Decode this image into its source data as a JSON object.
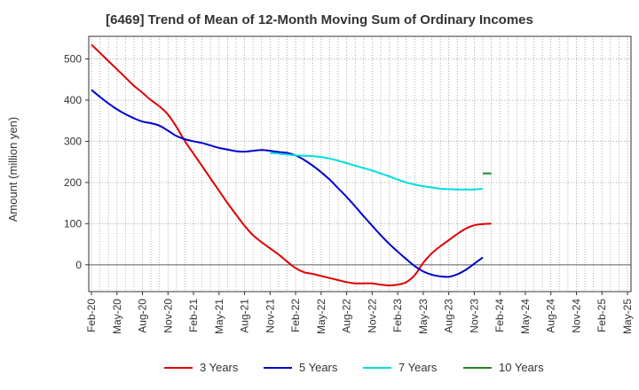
{
  "chart_data": {
    "type": "line",
    "title": "[6469]  Trend of Mean of 12-Month Moving Sum of Ordinary Incomes",
    "xlabel": "",
    "ylabel": "Amount (million yen)",
    "ylim": [
      -65,
      555
    ],
    "yticks": [
      0,
      100,
      200,
      300,
      400,
      500
    ],
    "x_tick_labels": [
      "Feb-20",
      "May-20",
      "Aug-20",
      "Nov-20",
      "Feb-21",
      "May-21",
      "Aug-21",
      "Nov-21",
      "Feb-22",
      "May-22",
      "Aug-22",
      "Nov-22",
      "Feb-23",
      "May-23",
      "Aug-23",
      "Nov-23",
      "Feb-24",
      "May-24",
      "Aug-24",
      "Nov-24",
      "Feb-25",
      "May-25"
    ],
    "grid": true,
    "legend_position": "bottom",
    "series": [
      {
        "name": "3 Years",
        "color": "#dd0000",
        "start_index": 0,
        "values": [
          535,
          515,
          495,
          475,
          455,
          435,
          418,
          400,
          385,
          365,
          335,
          300,
          270,
          240,
          210,
          180,
          150,
          122,
          95,
          72,
          55,
          40,
          25,
          8,
          -8,
          -18,
          -22,
          -27,
          -32,
          -37,
          -42,
          -45,
          -45,
          -45,
          -48,
          -50,
          -48,
          -42,
          -25,
          5,
          28,
          45,
          60,
          75,
          88,
          96,
          99,
          100
        ]
      },
      {
        "name": "5 Years",
        "color": "#0000cc",
        "start_index": 0,
        "values": [
          425,
          408,
          392,
          378,
          366,
          356,
          348,
          344,
          338,
          326,
          313,
          305,
          300,
          296,
          290,
          284,
          280,
          276,
          275,
          277,
          279,
          277,
          274,
          272,
          266,
          255,
          241,
          225,
          207,
          186,
          165,
          142,
          118,
          95,
          72,
          51,
          32,
          14,
          -3,
          -16,
          -24,
          -28,
          -29,
          -23,
          -12,
          3,
          18
        ]
      },
      {
        "name": "7 Years",
        "color": "#00dddd",
        "start_index": 21,
        "values": [
          272,
          270,
          268,
          266,
          265,
          264,
          262,
          258,
          253,
          247,
          241,
          235,
          229,
          222,
          215,
          207,
          200,
          195,
          191,
          188,
          185,
          184,
          183,
          183,
          183,
          185
        ]
      },
      {
        "name": "10 Years",
        "color": "#228822",
        "start_index": 46,
        "values": [
          222,
          222
        ]
      }
    ]
  }
}
